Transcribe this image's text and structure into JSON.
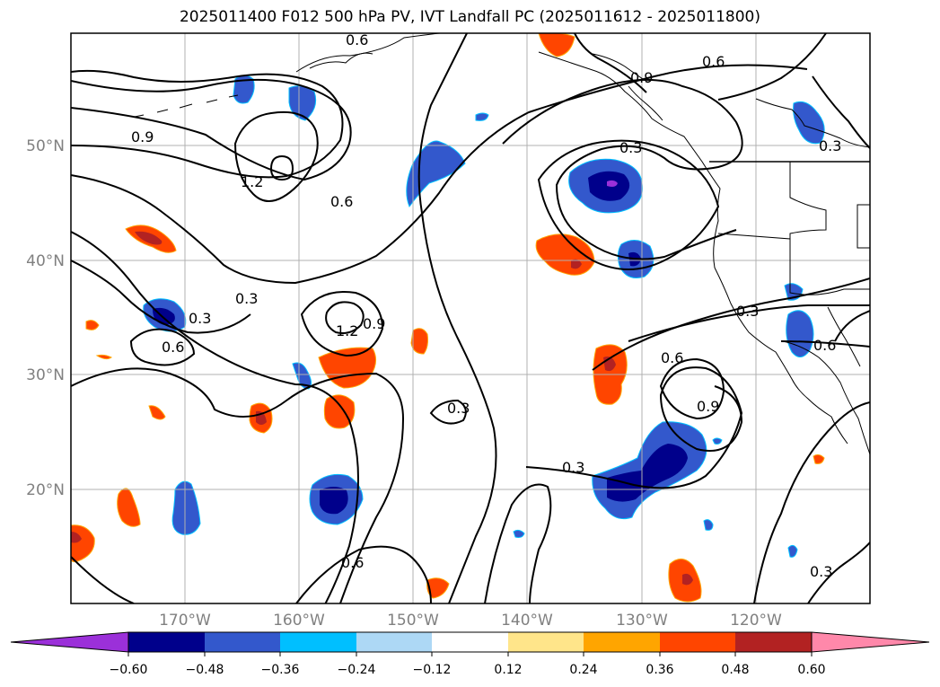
{
  "title": "2025011400 F012 500 hPa PV, IVT Landfall PC (2025011612 - 2025011800)",
  "map": {
    "lat_labels": [
      "50°N",
      "40°N",
      "30°N",
      "20°N"
    ],
    "lon_labels": [
      "170°W",
      "160°W",
      "150°W",
      "140°W",
      "130°W",
      "120°W"
    ],
    "contour_labels": [
      "0.6",
      "0.9",
      "1.2",
      "0.6",
      "0.3",
      "0.3",
      "0.6",
      "1.2",
      "0.9",
      "0.3",
      "0.6",
      "0.9",
      "0.3",
      "0.3",
      "0.6",
      "0.6",
      "0.3",
      "0.3",
      "0.6",
      "0.9",
      "0.3"
    ]
  },
  "colorbar": {
    "ticks": [
      "−0.60",
      "−0.48",
      "−0.36",
      "−0.24",
      "−0.12",
      "0.12",
      "0.24",
      "0.36",
      "0.48",
      "0.60"
    ],
    "colors": [
      "#9b30d9",
      "#00008b",
      "#3358cc",
      "#00bfff",
      "#add8f5",
      "#ffffff",
      "#ffe58a",
      "#ffa500",
      "#ff4500",
      "#b22222",
      "#ff88aa"
    ]
  },
  "colors": {
    "frame": "#000000",
    "grid": "#b0b0b0",
    "axis_label": "#808080"
  }
}
